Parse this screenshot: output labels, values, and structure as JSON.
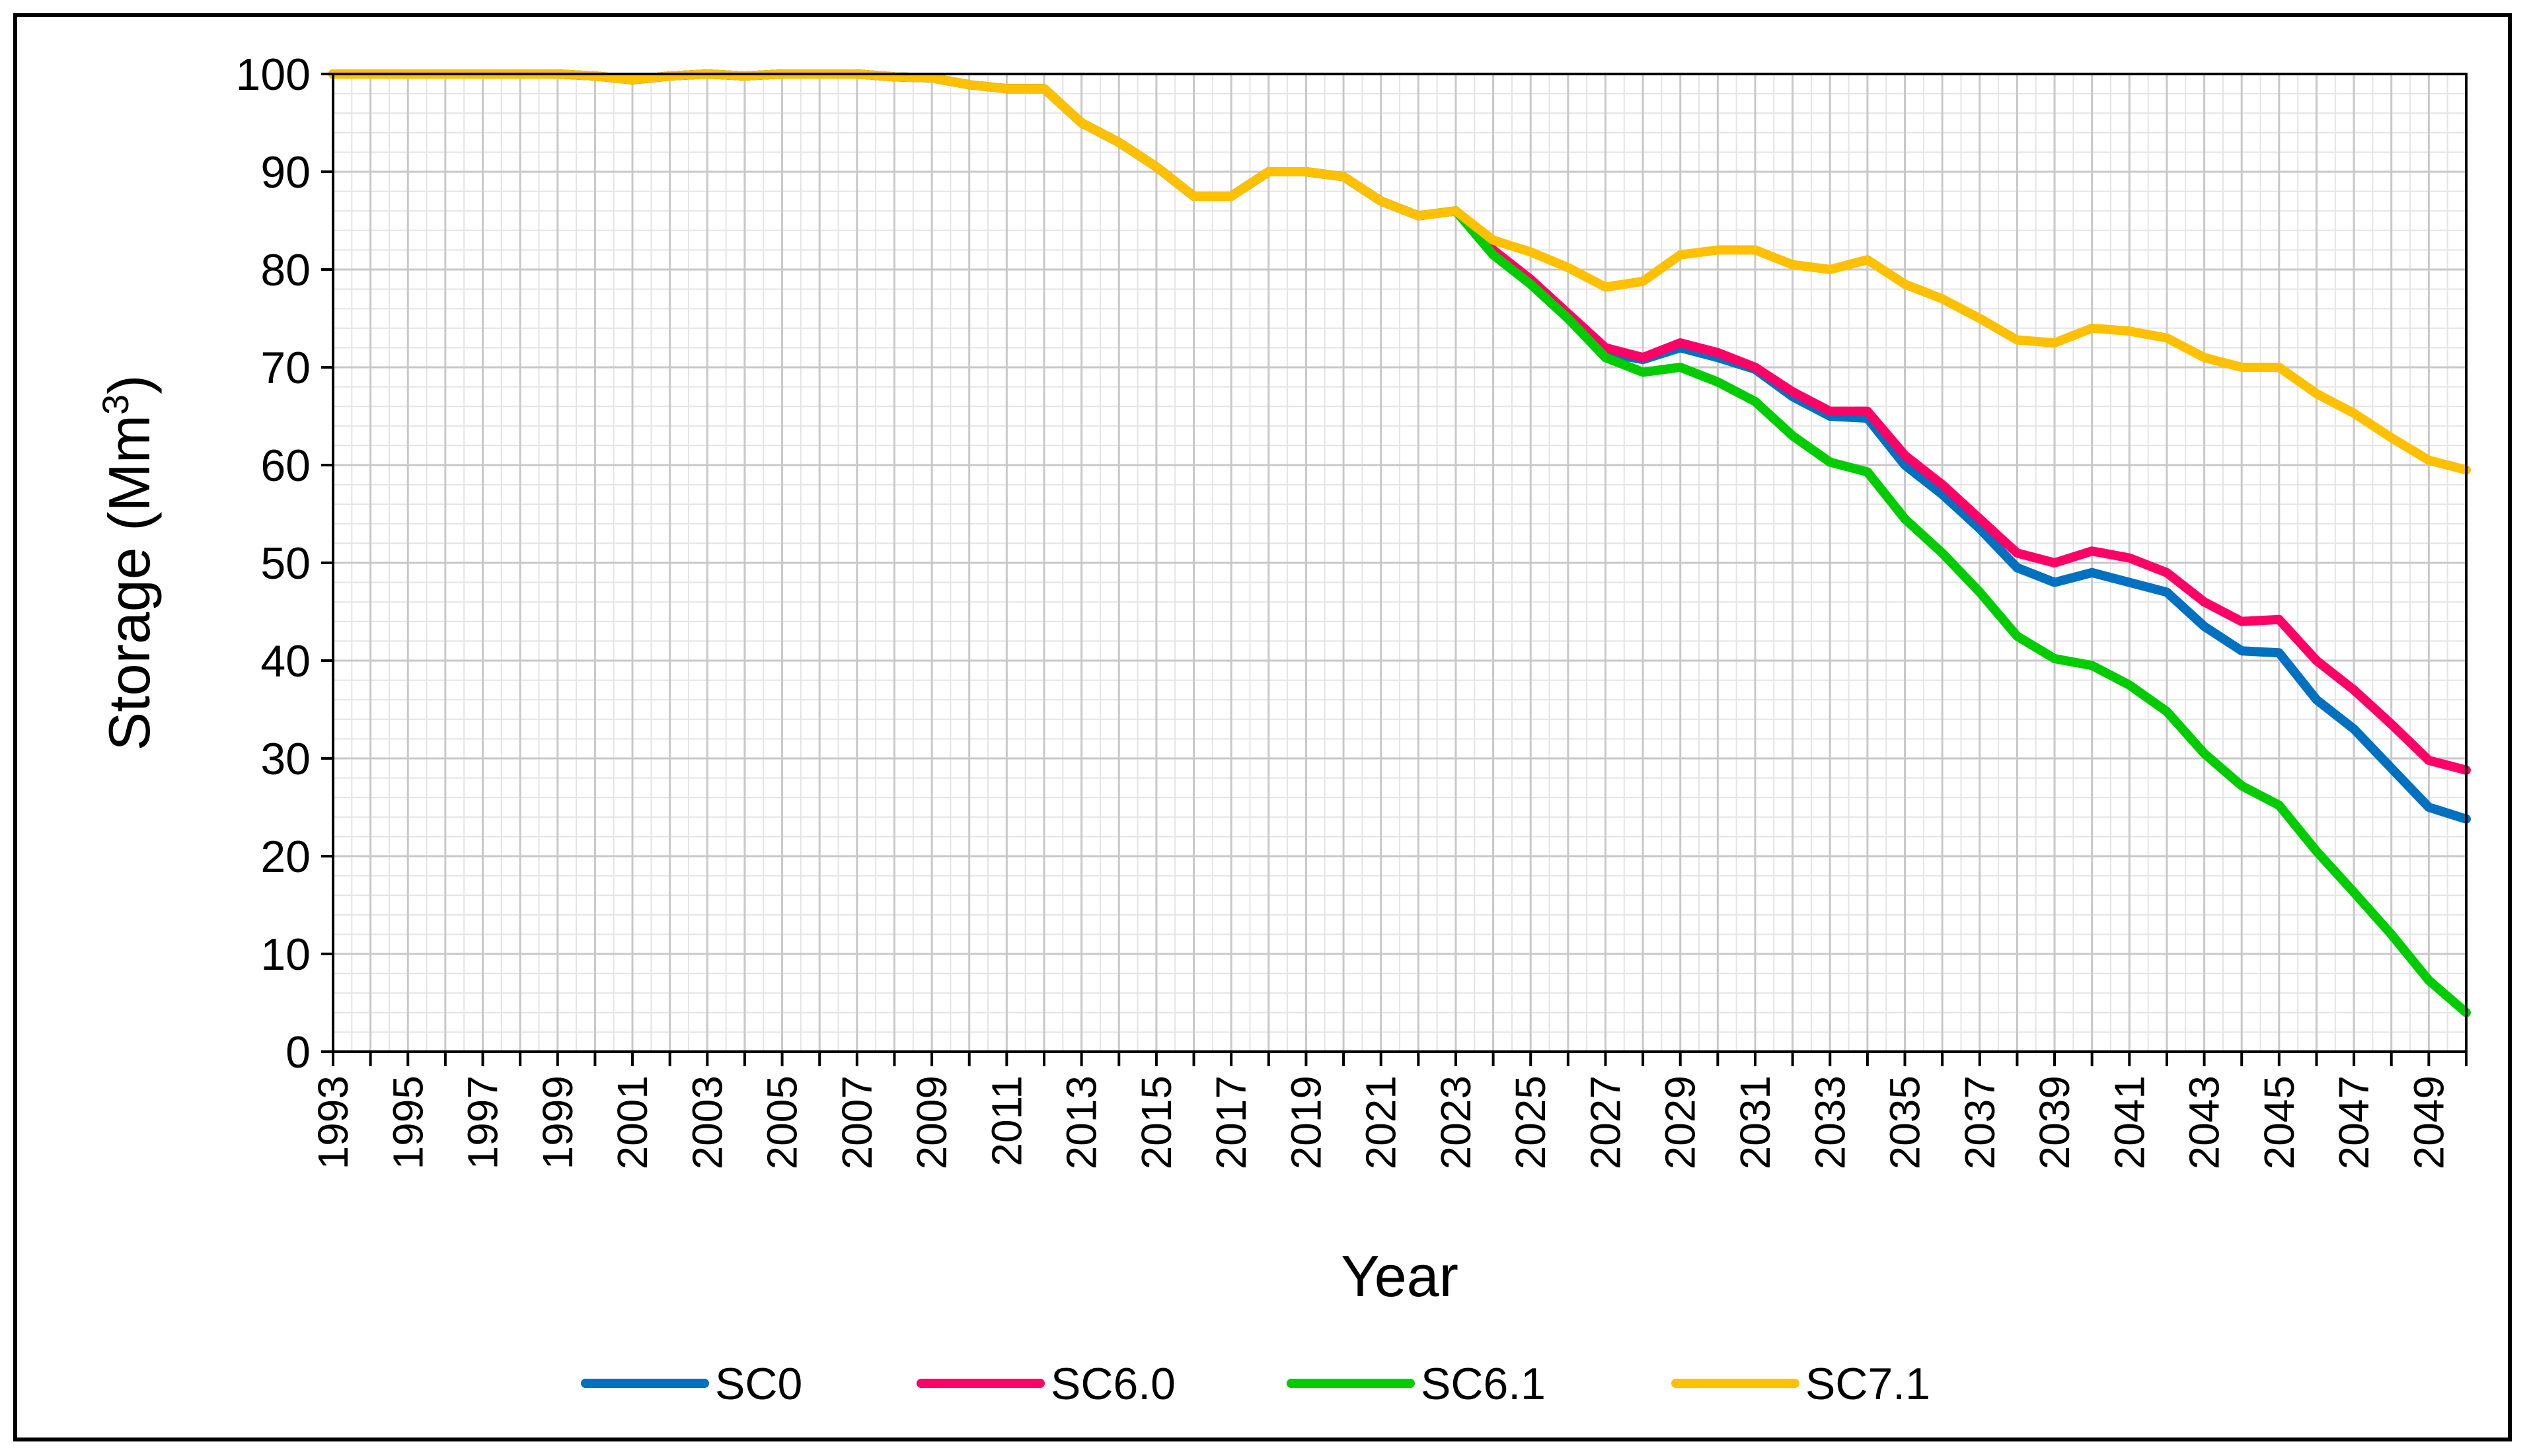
{
  "chart_data": {
    "type": "line",
    "ylabel_main": "Storage (Mm",
    "ylabel_sup": "3",
    "ylabel_close": ")",
    "xlabel": "Year",
    "ylim": [
      0,
      100
    ],
    "yticks": [
      0,
      10,
      20,
      30,
      40,
      50,
      60,
      70,
      80,
      90,
      100
    ],
    "xlim": [
      1993,
      2050
    ],
    "xtick_labels": [
      "1993",
      "1995",
      "1997",
      "1999",
      "2001",
      "2003",
      "2005",
      "2007",
      "2009",
      "2011",
      "2013",
      "2015",
      "2017",
      "2019",
      "2021",
      "2023",
      "2025",
      "2027",
      "2029",
      "2031",
      "2033",
      "2035",
      "2037",
      "2039",
      "2041",
      "2043",
      "2045",
      "2047",
      "2049"
    ],
    "years": [
      1993,
      1994,
      1995,
      1996,
      1997,
      1998,
      1999,
      2000,
      2001,
      2002,
      2003,
      2004,
      2005,
      2006,
      2007,
      2008,
      2009,
      2010,
      2011,
      2012,
      2013,
      2014,
      2015,
      2016,
      2017,
      2018,
      2019,
      2020,
      2021,
      2022,
      2023,
      2024,
      2025,
      2026,
      2027,
      2028,
      2029,
      2030,
      2031,
      2032,
      2033,
      2034,
      2035,
      2036,
      2037,
      2038,
      2039,
      2040,
      2041,
      2042,
      2043,
      2044,
      2045,
      2046,
      2047,
      2048,
      2049,
      2050
    ],
    "series": [
      {
        "name": "SC0",
        "color": "#0070C0",
        "values": [
          100,
          100,
          100,
          100,
          100,
          100,
          100,
          99.8,
          99.4,
          99.8,
          100,
          99.8,
          100,
          100,
          100,
          99.7,
          99.6,
          98.9,
          98.5,
          98.5,
          95,
          93,
          90.5,
          87.5,
          87.5,
          90,
          90,
          89.5,
          87,
          85.5,
          86,
          82,
          78.5,
          75,
          71.5,
          70.8,
          72,
          71,
          69.8,
          67,
          65,
          64.8,
          60,
          57,
          53.5,
          49.5,
          48,
          49,
          48,
          47,
          43.5,
          41,
          40.8,
          36,
          33,
          29,
          25,
          23.8
        ]
      },
      {
        "name": "SC6.0",
        "color": "#FF0066",
        "values": [
          100,
          100,
          100,
          100,
          100,
          100,
          100,
          99.8,
          99.4,
          99.8,
          100,
          99.8,
          100,
          100,
          100,
          99.7,
          99.6,
          98.9,
          98.5,
          98.5,
          95,
          93,
          90.5,
          87.5,
          87.5,
          90,
          90,
          89.5,
          87,
          85.5,
          86,
          82,
          79,
          75.5,
          72,
          71,
          72.5,
          71.5,
          70,
          67.5,
          65.5,
          65.5,
          61,
          58,
          54.5,
          51,
          50,
          51.2,
          50.5,
          49,
          46,
          44,
          44.2,
          40,
          37,
          33.5,
          29.8,
          28.8
        ]
      },
      {
        "name": "SC6.1",
        "color": "#00CC00",
        "values": [
          100,
          100,
          100,
          100,
          100,
          100,
          100,
          99.8,
          99.4,
          99.8,
          100,
          99.8,
          100,
          100,
          100,
          99.7,
          99.6,
          98.9,
          98.5,
          98.5,
          95,
          93,
          90.5,
          87.5,
          87.5,
          90,
          90,
          89.5,
          87,
          85.5,
          86,
          81.5,
          78.5,
          75,
          71,
          69.5,
          70,
          68.5,
          66.5,
          63,
          60.3,
          59.3,
          54.5,
          51,
          47,
          42.5,
          40.2,
          39.5,
          37.5,
          34.8,
          30.5,
          27.2,
          25.2,
          20.5,
          16.3,
          12,
          7.3,
          4
        ]
      },
      {
        "name": "SC7.1",
        "color": "#FFC000",
        "values": [
          100,
          100,
          100,
          100,
          100,
          100,
          100,
          99.8,
          99.4,
          99.8,
          100,
          99.8,
          100,
          100,
          100,
          99.7,
          99.6,
          98.9,
          98.5,
          98.5,
          95,
          93,
          90.5,
          87.5,
          87.5,
          90,
          90,
          89.5,
          87,
          85.5,
          86,
          83,
          81.8,
          80.2,
          78.2,
          78.8,
          81.5,
          82,
          82,
          80.5,
          80,
          81,
          78.5,
          77,
          75,
          72.8,
          72.5,
          74,
          73.7,
          73,
          71,
          70,
          70,
          67.3,
          65.3,
          62.8,
          60.5,
          59.5
        ]
      }
    ]
  }
}
